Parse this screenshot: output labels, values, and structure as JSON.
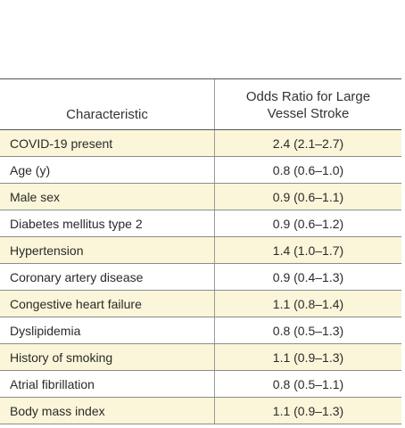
{
  "table": {
    "headers": {
      "characteristic": "Characteristic",
      "odds_line1": "Odds Ratio for Large",
      "odds_line2": "Vessel Stroke"
    },
    "rows": [
      {
        "characteristic": "COVID-19 present",
        "odds": "2.4 (2.1–2.7)",
        "shaded": true
      },
      {
        "characteristic": "Age (y)",
        "odds": "0.8 (0.6–1.0)",
        "shaded": false
      },
      {
        "characteristic": "Male sex",
        "odds": "0.9 (0.6–1.1)",
        "shaded": true
      },
      {
        "characteristic": "Diabetes mellitus type 2",
        "odds": "0.9 (0.6–1.2)",
        "shaded": false
      },
      {
        "characteristic": "Hypertension",
        "odds": "1.4 (1.0–1.7)",
        "shaded": true
      },
      {
        "characteristic": "Coronary artery disease",
        "odds": "0.9 (0.4–1.3)",
        "shaded": false
      },
      {
        "characteristic": "Congestive heart failure",
        "odds": "1.1 (0.8–1.4)",
        "shaded": true
      },
      {
        "characteristic": "Dyslipidemia",
        "odds": "0.8 (0.5–1.3)",
        "shaded": false
      },
      {
        "characteristic": "History of smoking",
        "odds": "1.1 (0.9–1.3)",
        "shaded": true
      },
      {
        "characteristic": "Atrial fibrillation",
        "odds": "0.8 (0.5–1.1)",
        "shaded": false
      },
      {
        "characteristic": "Body mass index",
        "odds": "1.1 (0.9–1.3)",
        "shaded": true
      }
    ],
    "colors": {
      "shade": "#fbf6d9",
      "rule": "#8c8c8c",
      "text": "#2a2a2a"
    }
  }
}
